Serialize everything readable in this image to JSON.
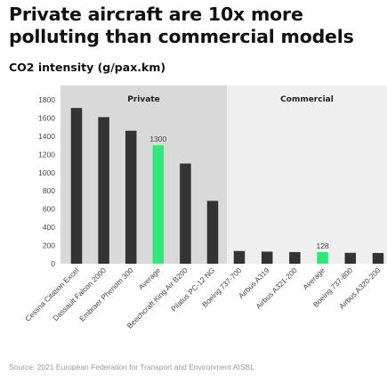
{
  "title": "Private aircraft are 10x more polluting than commercial models",
  "source": "Source: 2021 European Federation for Transport and Environment AISBL",
  "colors": {
    "bar": "#333333",
    "highlight": "#2ee87a",
    "private_panel": "#d9d9d9",
    "commercial_panel": "#efefef",
    "axis_text": "#444444",
    "source_text": "#9a9a9a"
  },
  "chart_data": {
    "type": "bar",
    "ylabel": "CO2 intensity (g/pax.km)",
    "ylim": [
      0,
      1800
    ],
    "yticks": [
      0,
      200,
      400,
      600,
      800,
      1000,
      1200,
      1400,
      1600,
      1800
    ],
    "grid": false,
    "groups": [
      {
        "label": "Private",
        "categories": [
          "Cessna Citation Excel",
          "Dassault Falcon 2000",
          "Embraer Phenom 300",
          "Average",
          "Beechcraft King Air B200",
          "Pilatus PC-12 NG"
        ],
        "values": [
          1710,
          1610,
          1460,
          1300,
          1100,
          690
        ],
        "highlight_index": 3,
        "highlight_label": "1300"
      },
      {
        "label": "Commercial",
        "categories": [
          "Boeing 737-700",
          "Airbus A319",
          "Airbus A321-200",
          "Average",
          "Boeing 737-800",
          "Airbus A320-200"
        ],
        "values": [
          140,
          133,
          128,
          128,
          120,
          118
        ],
        "highlight_index": 3,
        "highlight_label": "128"
      }
    ]
  }
}
